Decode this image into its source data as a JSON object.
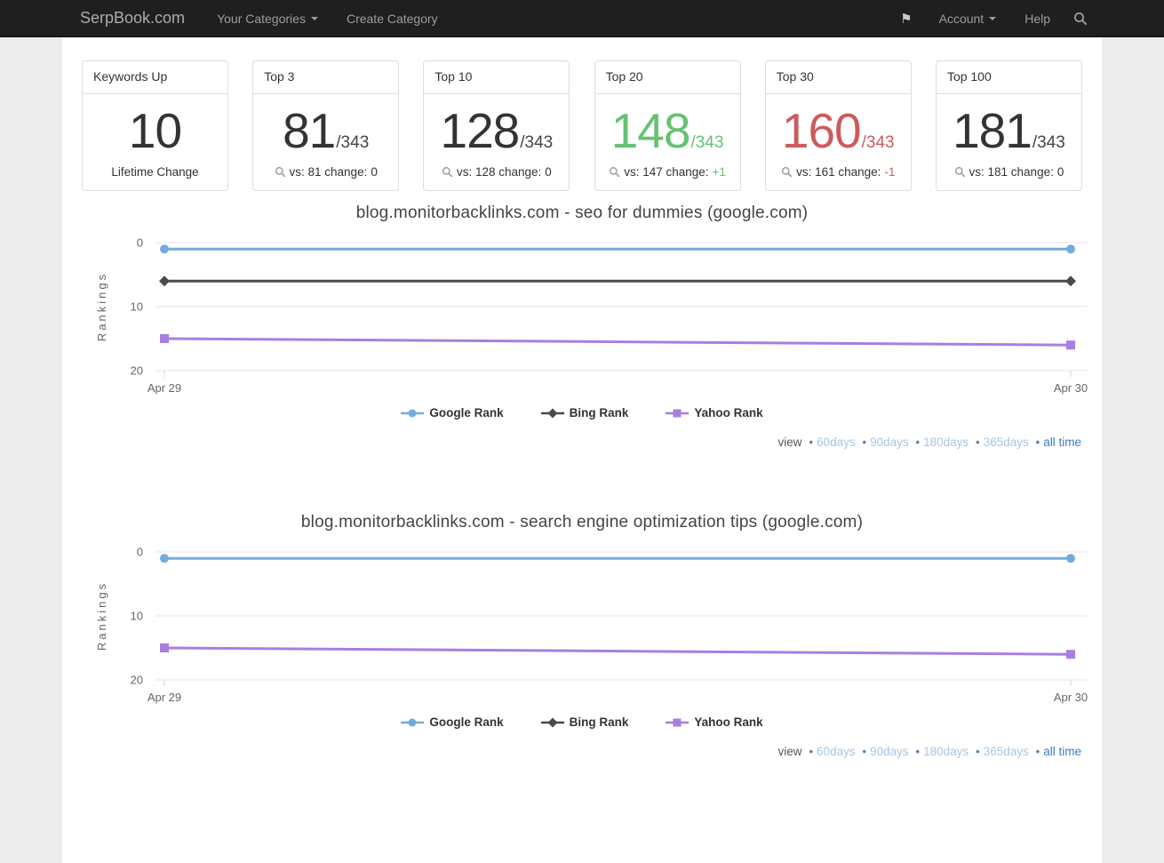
{
  "navbar": {
    "brand": "SerpBook.com",
    "your_categories": "Your Categories",
    "create_category": "Create Category",
    "account": "Account",
    "help": "Help"
  },
  "colors": {
    "green": "#66c273",
    "red": "#cd5b5b",
    "dark": "#333333",
    "link_light": "#a6c5e5",
    "link_strong": "#3a7cbf"
  },
  "stat_cards": [
    {
      "title": "Keywords Up",
      "value": "10",
      "total": "",
      "footer_prefix": "Lifetime Change",
      "change": ""
    },
    {
      "title": "Top 3",
      "value": "81",
      "total": "/343",
      "footer_prefix": "vs: 81 change:",
      "change": "0"
    },
    {
      "title": "Top 10",
      "value": "128",
      "total": "/343",
      "footer_prefix": "vs: 128 change:",
      "change": "0"
    },
    {
      "title": "Top 20",
      "value": "148",
      "total": "/343",
      "footer_prefix": "vs: 147 change:",
      "change": "+1"
    },
    {
      "title": "Top 30",
      "value": "160",
      "total": "/343",
      "footer_prefix": "vs: 161 change:",
      "change": "-1"
    },
    {
      "title": "Top 100",
      "value": "181",
      "total": "/343",
      "footer_prefix": "vs: 181 change:",
      "change": "0"
    }
  ],
  "charts": [
    {
      "chart_data": {
        "type": "line",
        "title": "blog.monitorbacklinks.com - seo for dummies (google.com)",
        "ylabel": "Rankings",
        "y_inverted": true,
        "ylim": [
          0,
          20
        ],
        "yticks": [
          0,
          10,
          20
        ],
        "x_labels": [
          "Apr 29",
          "Apr 30"
        ],
        "grid": true,
        "legend_position": "bottom",
        "series": [
          {
            "name": "Google Rank",
            "marker": "circle",
            "color": "#74abdd",
            "values": [
              1,
              1
            ]
          },
          {
            "name": "Bing Rank",
            "marker": "diamond",
            "color": "#4a4a4a",
            "values": [
              6,
              6
            ]
          },
          {
            "name": "Yahoo Rank",
            "marker": "square",
            "color": "#a87ee0",
            "values": [
              15,
              16
            ]
          }
        ]
      },
      "view": {
        "label": "view",
        "options": [
          "60days",
          "90days",
          "180days",
          "365days"
        ],
        "all_time": "all time"
      }
    },
    {
      "chart_data": {
        "type": "line",
        "title": "blog.monitorbacklinks.com - search engine optimization tips (google.com)",
        "ylabel": "Rankings",
        "y_inverted": true,
        "ylim": [
          0,
          20
        ],
        "yticks": [
          0,
          10,
          20
        ],
        "x_labels": [
          "Apr 29",
          "Apr 30"
        ],
        "grid": true,
        "legend_position": "bottom",
        "series": [
          {
            "name": "Google Rank",
            "marker": "circle",
            "color": "#74abdd",
            "values": [
              1,
              1
            ]
          },
          {
            "name": "Bing Rank",
            "marker": "diamond",
            "color": "#4a4a4a",
            "values": []
          },
          {
            "name": "Yahoo Rank",
            "marker": "square",
            "color": "#a87ee0",
            "values": [
              15,
              16
            ]
          }
        ]
      },
      "view": {
        "label": "view",
        "options": [
          "60days",
          "90days",
          "180days",
          "365days"
        ],
        "all_time": "all time"
      }
    }
  ]
}
